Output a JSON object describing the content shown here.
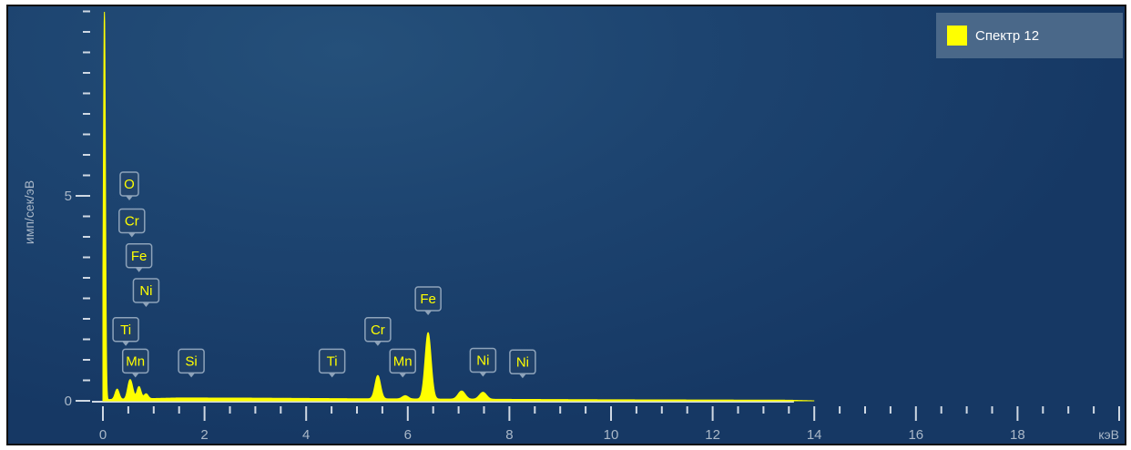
{
  "legend": {
    "label": "Спектр 12",
    "color": "#ffff00"
  },
  "chart_data": {
    "type": "area",
    "xlabel": "кэВ",
    "ylabel": "имп/сек/эВ",
    "xlim": [
      0,
      20.5
    ],
    "ylim": [
      0,
      9.5
    ],
    "x_ticks": [
      0,
      2,
      4,
      6,
      8,
      10,
      12,
      14,
      16,
      18
    ],
    "y_ticks": [
      0,
      5
    ],
    "grid": false,
    "legend_position": "top-right",
    "colors": {
      "series": "#ffff00",
      "axis": "#cfd8e3",
      "tick_text": "#aab8c8"
    },
    "series": [
      {
        "name": "Спектр 12",
        "peaks": [
          {
            "x": 0.03,
            "height": 9.5,
            "width": 0.02
          },
          {
            "x": 0.28,
            "height": 0.25,
            "width": 0.04
          },
          {
            "x": 0.52,
            "height": 0.35,
            "width": 0.04
          },
          {
            "x": 0.57,
            "height": 0.22,
            "width": 0.04
          },
          {
            "x": 0.71,
            "height": 0.3,
            "width": 0.04
          },
          {
            "x": 0.85,
            "height": 0.12,
            "width": 0.04
          },
          {
            "x": 5.41,
            "height": 0.57,
            "width": 0.055
          },
          {
            "x": 5.95,
            "height": 0.08,
            "width": 0.06
          },
          {
            "x": 6.4,
            "height": 1.62,
            "width": 0.06
          },
          {
            "x": 7.06,
            "height": 0.2,
            "width": 0.07
          },
          {
            "x": 7.48,
            "height": 0.17,
            "width": 0.07
          }
        ],
        "continuum": [
          [
            0.1,
            0.03
          ],
          [
            1.5,
            0.07
          ],
          [
            3,
            0.065
          ],
          [
            5,
            0.05
          ],
          [
            7,
            0.04
          ],
          [
            10,
            0.025
          ],
          [
            13.5,
            0.015
          ],
          [
            14,
            0.0
          ]
        ]
      }
    ],
    "annotations": [
      {
        "text": "O",
        "x": 0.52,
        "y": 5.0
      },
      {
        "text": "Cr",
        "x": 0.57,
        "y": 4.1
      },
      {
        "text": "Fe",
        "x": 0.71,
        "y": 3.25
      },
      {
        "text": "Ni",
        "x": 0.85,
        "y": 2.4
      },
      {
        "text": "Ti",
        "x": 0.45,
        "y": 1.45
      },
      {
        "text": "Mn",
        "x": 0.64,
        "y": 0.68
      },
      {
        "text": "Si",
        "x": 1.74,
        "y": 0.68
      },
      {
        "text": "Ti",
        "x": 4.51,
        "y": 0.68
      },
      {
        "text": "Cr",
        "x": 5.41,
        "y": 1.45
      },
      {
        "text": "Mn",
        "x": 5.9,
        "y": 0.68
      },
      {
        "text": "Fe",
        "x": 6.4,
        "y": 2.2
      },
      {
        "text": "Ni",
        "x": 7.48,
        "y": 0.7
      },
      {
        "text": "Ni",
        "x": 8.26,
        "y": 0.66
      }
    ]
  }
}
